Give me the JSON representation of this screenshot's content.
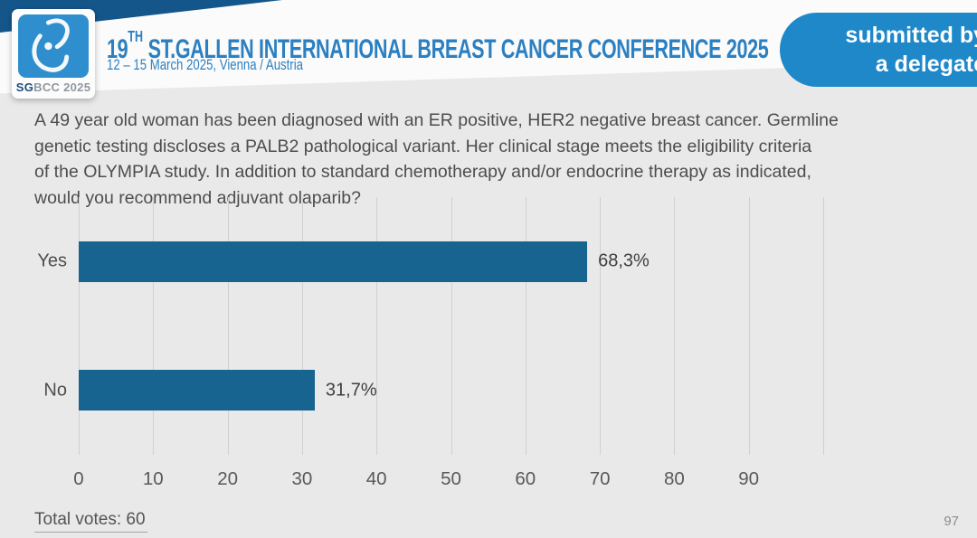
{
  "header": {
    "title_num": "19",
    "title_sup": "TH",
    "title_rest": "ST.GALLEN INTERNATIONAL BREAST CANCER CONFERENCE 2025",
    "subtitle": "12 – 15 March 2025, Vienna / Austria",
    "logo": {
      "sg": "SG",
      "rest": "BCC 2025",
      "symbol_icon": "breast-logo-icon"
    },
    "badge": {
      "line1": "submitted by",
      "line2": "a delegate",
      "color": "#1e88c9"
    }
  },
  "question": {
    "text": "A 49 year old woman has been diagnosed with an ER positive, HER2 negative breast cancer.  Germline genetic testing discloses a PALB2 pathological variant. Her clinical stage meets the eligibility criteria of the OLYMPIA study.  In addition to standard chemotherapy and/or endocrine therapy as indicated, would you recommend adjuvant olaparib?",
    "lines": [
      "A 49 year old woman has been diagnosed with an ER positive, HER2 negative breast cancer.  Germline",
      "genetic testing discloses a PALB2 pathological variant. Her clinical stage meets the eligibility criteria",
      "of the OLYMPIA study.  In addition to standard chemotherapy and/or endocrine therapy as indicated,",
      "would you recommend adjuvant olaparib?"
    ]
  },
  "chart_data": {
    "type": "bar",
    "orientation": "horizontal",
    "categories": [
      "Yes",
      "No"
    ],
    "values": [
      68.3,
      31.7
    ],
    "value_labels": [
      "68,3%",
      "31,7%"
    ],
    "xlim": [
      0,
      100
    ],
    "grid_ticks": [
      0,
      10,
      20,
      30,
      40,
      50,
      60,
      70,
      80,
      90,
      100
    ],
    "xtick_labels": [
      0,
      10,
      20,
      30,
      40,
      50,
      60,
      70,
      80,
      90
    ],
    "bar_color": "#16648f",
    "grid": "vertical gridlines on",
    "legend": "none",
    "title": "",
    "xlabel": "",
    "ylabel": ""
  },
  "footer": {
    "total_votes_label": "Total votes: 60",
    "page_number": "97"
  }
}
